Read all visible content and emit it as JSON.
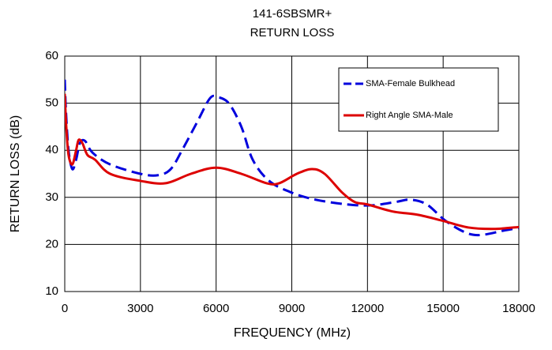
{
  "chart_data": {
    "type": "line",
    "title": "141-6SBSMR+",
    "subtitle": "RETURN LOSS",
    "x_label": "FREQUENCY (MHz)",
    "y_label": "RETURN LOSS (dB)",
    "xlim": [
      0,
      18000
    ],
    "xticks": [
      0,
      3000,
      6000,
      9000,
      12000,
      15000,
      18000
    ],
    "ylim": [
      10,
      60
    ],
    "yticks": [
      10,
      20,
      30,
      40,
      50,
      60
    ],
    "grid": true,
    "legend": "upper right",
    "series": [
      {
        "name": "SMA-Female Bulkhead",
        "color": "#0000dd",
        "style": "dashed",
        "x": [
          0,
          50,
          150,
          300,
          450,
          600,
          800,
          1100,
          1800,
          3000,
          3700,
          4200,
          4650,
          5250,
          5750,
          6050,
          6500,
          7000,
          7450,
          8100,
          9000,
          9950,
          11200,
          12150,
          13100,
          13700,
          14350,
          15100,
          15900,
          16500,
          17450,
          18000
        ],
        "values": [
          55,
          48,
          40,
          36,
          38,
          41.5,
          42,
          39.5,
          37,
          35,
          34.7,
          36,
          40,
          46,
          51,
          51.3,
          50,
          45,
          38,
          33.5,
          31,
          29.5,
          28.5,
          28.3,
          29,
          29.5,
          28.5,
          25,
          22.5,
          22,
          23,
          23.5
        ]
      },
      {
        "name": "Right Angle SMA-Male",
        "color": "#dd0000",
        "style": "solid",
        "x": [
          0,
          60,
          150,
          300,
          450,
          550,
          700,
          900,
          1200,
          1800,
          3000,
          4000,
          5000,
          6000,
          7000,
          8000,
          8500,
          9200,
          9800,
          10300,
          11000,
          11500,
          12000,
          13000,
          14000,
          15000,
          16000,
          17000,
          18000
        ],
        "values": [
          52,
          45,
          39,
          37,
          40,
          42.2,
          41.5,
          39,
          38,
          35,
          33.5,
          33,
          35,
          36.3,
          35,
          33,
          33,
          35,
          36,
          35,
          31,
          29,
          28.5,
          27,
          26.3,
          25,
          23.6,
          23.3,
          23.7
        ]
      }
    ]
  }
}
